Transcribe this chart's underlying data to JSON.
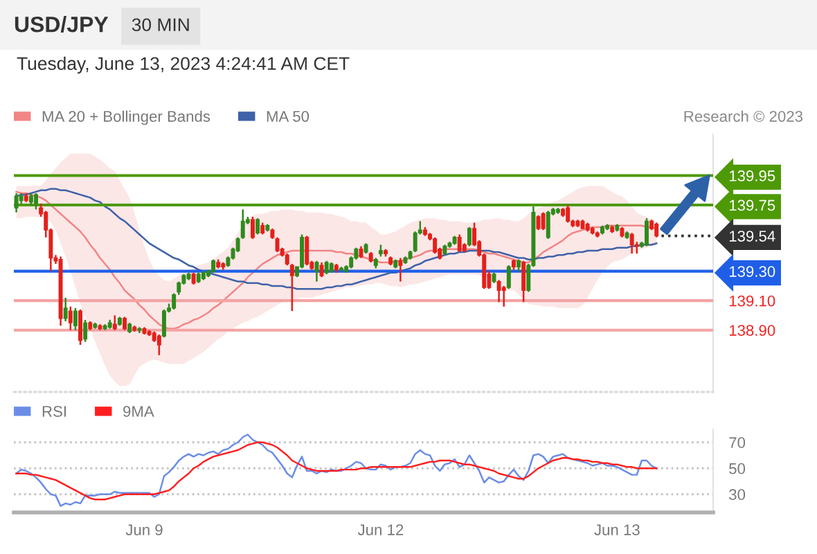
{
  "chart_data": [
    {
      "type": "candlestick",
      "title": "USD/JPY",
      "subtitle": "30 MIN",
      "annotations": [
        "Tuesday, June 13, 2023 4:24:41 AM CET",
        "Research © 2023"
      ],
      "categories": [
        null,
        null,
        null,
        null,
        null,
        null,
        null,
        null,
        null,
        null,
        null,
        null,
        null,
        null,
        null,
        null,
        null,
        null,
        null,
        null,
        null,
        null,
        null,
        null,
        null,
        null,
        null,
        null,
        null,
        null,
        null,
        null,
        null,
        null,
        null,
        null,
        null,
        null,
        null,
        null,
        null,
        null,
        null,
        null,
        null,
        null,
        null,
        null,
        null,
        null,
        null,
        null,
        null,
        null,
        null,
        null,
        null,
        null,
        null,
        null,
        null,
        null,
        null,
        null,
        null,
        null,
        null,
        null,
        null,
        null,
        null,
        null,
        null,
        null,
        null,
        null,
        null,
        null,
        null,
        null,
        null,
        null,
        null,
        null,
        null,
        null,
        null,
        null,
        null,
        null,
        null,
        null,
        null,
        null,
        null,
        null,
        null,
        null,
        null,
        null,
        null,
        null,
        null,
        null,
        null,
        null,
        null,
        null,
        null,
        null,
        null,
        null,
        null,
        null,
        null,
        null,
        null,
        null,
        null,
        null,
        null,
        null,
        null,
        null,
        null,
        null,
        null,
        null,
        null,
        null,
        null,
        null,
        null,
        null,
        null,
        null,
        null,
        null,
        null,
        null,
        null,
        null
      ],
      "ohlc": [
        [
          139.73,
          139.83,
          139.7,
          139.81
        ],
        [
          139.78,
          139.83,
          139.76,
          139.81
        ],
        [
          139.81,
          139.83,
          139.77,
          139.78
        ],
        [
          139.77,
          139.83,
          139.75,
          139.81
        ],
        [
          139.76,
          139.83,
          139.72,
          139.82
        ],
        [
          139.73,
          139.76,
          139.67,
          139.69
        ],
        [
          139.7,
          139.71,
          139.53,
          139.58
        ],
        [
          139.58,
          139.59,
          139.3,
          139.39
        ],
        [
          139.39,
          139.41,
          139.35,
          139.37
        ],
        [
          139.38,
          139.4,
          138.93,
          138.98
        ],
        [
          138.98,
          139.12,
          138.96,
          139.05
        ],
        [
          139.03,
          139.06,
          138.9,
          138.95
        ],
        [
          138.93,
          139.05,
          138.9,
          139.03
        ],
        [
          139.03,
          139.04,
          138.8,
          138.83
        ],
        [
          138.84,
          138.97,
          138.82,
          138.95
        ],
        [
          138.95,
          138.96,
          138.9,
          138.91
        ],
        [
          138.92,
          138.95,
          138.91,
          138.94
        ],
        [
          138.93,
          138.94,
          138.9,
          138.91
        ],
        [
          138.91,
          138.94,
          138.9,
          138.93
        ],
        [
          138.92,
          138.97,
          138.91,
          138.95
        ],
        [
          138.94,
          139.0,
          138.9,
          138.91
        ],
        [
          138.94,
          138.99,
          138.93,
          138.98
        ],
        [
          138.98,
          138.99,
          138.9,
          138.91
        ],
        [
          138.89,
          138.95,
          138.88,
          138.94
        ],
        [
          138.92,
          138.93,
          138.89,
          138.9
        ],
        [
          138.9,
          138.92,
          138.88,
          138.91
        ],
        [
          138.91,
          138.92,
          138.87,
          138.88
        ],
        [
          138.89,
          138.9,
          138.86,
          138.87
        ],
        [
          138.88,
          138.89,
          138.82,
          138.83
        ],
        [
          138.86,
          138.87,
          138.73,
          138.8
        ],
        [
          138.86,
          139.04,
          138.85,
          139.03
        ],
        [
          139.03,
          139.08,
          139.02,
          139.05
        ],
        [
          139.05,
          139.15,
          139.04,
          139.14
        ],
        [
          139.16,
          139.23,
          139.14,
          139.22
        ],
        [
          139.22,
          139.28,
          139.21,
          139.27
        ],
        [
          139.25,
          139.29,
          139.24,
          139.28
        ],
        [
          139.28,
          139.29,
          139.21,
          139.22
        ],
        [
          139.23,
          139.29,
          139.22,
          139.28
        ],
        [
          139.25,
          139.3,
          139.24,
          139.29
        ],
        [
          139.27,
          139.31,
          139.26,
          139.3
        ],
        [
          139.3,
          139.38,
          139.29,
          139.37
        ],
        [
          139.36,
          139.38,
          139.32,
          139.33
        ],
        [
          139.35,
          139.36,
          139.31,
          139.33
        ],
        [
          139.34,
          139.4,
          139.33,
          139.39
        ],
        [
          139.39,
          139.46,
          139.38,
          139.45
        ],
        [
          139.44,
          139.53,
          139.43,
          139.52
        ],
        [
          139.53,
          139.72,
          139.52,
          139.64
        ],
        [
          139.63,
          139.67,
          139.62,
          139.65
        ],
        [
          139.65,
          139.67,
          139.52,
          139.53
        ],
        [
          139.56,
          139.66,
          139.55,
          139.65
        ],
        [
          139.61,
          139.63,
          139.55,
          139.56
        ],
        [
          139.58,
          139.62,
          139.57,
          139.61
        ],
        [
          139.58,
          139.59,
          139.52,
          139.53
        ],
        [
          139.52,
          139.53,
          139.43,
          139.44
        ],
        [
          139.45,
          139.46,
          139.4,
          139.41
        ],
        [
          139.41,
          139.42,
          139.34,
          139.35
        ],
        [
          139.34,
          139.35,
          139.03,
          139.27
        ],
        [
          139.27,
          139.33,
          139.26,
          139.33
        ],
        [
          139.33,
          139.55,
          139.32,
          139.53
        ],
        [
          139.53,
          139.54,
          139.34,
          139.35
        ],
        [
          139.36,
          139.37,
          139.31,
          139.32
        ],
        [
          139.3,
          139.37,
          139.23,
          139.36
        ],
        [
          139.34,
          139.36,
          139.26,
          139.27
        ],
        [
          139.29,
          139.37,
          139.28,
          139.36
        ],
        [
          139.3,
          139.36,
          139.29,
          139.35
        ],
        [
          139.34,
          139.35,
          139.29,
          139.31
        ],
        [
          139.31,
          139.33,
          139.3,
          139.32
        ],
        [
          139.3,
          139.34,
          139.29,
          139.33
        ],
        [
          139.33,
          139.4,
          139.32,
          139.39
        ],
        [
          139.39,
          139.46,
          139.38,
          139.45
        ],
        [
          139.45,
          139.47,
          139.39,
          139.4
        ],
        [
          139.43,
          139.49,
          139.42,
          139.48
        ],
        [
          139.42,
          139.43,
          139.36,
          139.37
        ],
        [
          139.34,
          139.39,
          139.32,
          139.38
        ],
        [
          139.42,
          139.48,
          139.4,
          139.44
        ],
        [
          139.44,
          139.45,
          139.4,
          139.42
        ],
        [
          139.39,
          139.4,
          139.34,
          139.35
        ],
        [
          139.33,
          139.38,
          139.32,
          139.37
        ],
        [
          139.37,
          139.39,
          139.23,
          139.34
        ],
        [
          139.36,
          139.4,
          139.35,
          139.39
        ],
        [
          139.39,
          139.44,
          139.38,
          139.43
        ],
        [
          139.44,
          139.57,
          139.43,
          139.56
        ],
        [
          139.56,
          139.64,
          139.55,
          139.58
        ],
        [
          139.58,
          139.6,
          139.54,
          139.55
        ],
        [
          139.55,
          139.56,
          139.51,
          139.52
        ],
        [
          139.52,
          139.53,
          139.42,
          139.43
        ],
        [
          139.45,
          139.46,
          139.38,
          139.39
        ],
        [
          139.42,
          139.48,
          139.41,
          139.47
        ],
        [
          139.47,
          139.5,
          139.46,
          139.49
        ],
        [
          139.49,
          139.54,
          139.48,
          139.53
        ],
        [
          139.53,
          139.55,
          139.43,
          139.44
        ],
        [
          139.48,
          139.49,
          139.43,
          139.44
        ],
        [
          139.48,
          139.6,
          139.47,
          139.59
        ],
        [
          139.59,
          139.63,
          139.47,
          139.48
        ],
        [
          139.5,
          139.51,
          139.4,
          139.41
        ],
        [
          139.41,
          139.42,
          139.18,
          139.19
        ],
        [
          139.28,
          139.3,
          139.18,
          139.19
        ],
        [
          139.23,
          139.29,
          139.22,
          139.28
        ],
        [
          139.23,
          139.24,
          139.09,
          139.17
        ],
        [
          139.19,
          139.2,
          139.06,
          139.17
        ],
        [
          139.19,
          139.34,
          139.18,
          139.33
        ],
        [
          139.37,
          139.38,
          139.31,
          139.33
        ],
        [
          139.33,
          139.38,
          139.3,
          139.37
        ],
        [
          139.36,
          139.37,
          139.09,
          139.17
        ],
        [
          139.17,
          139.35,
          139.16,
          139.34
        ],
        [
          139.34,
          139.74,
          139.33,
          139.7
        ],
        [
          139.67,
          139.68,
          139.58,
          139.59
        ],
        [
          139.69,
          139.7,
          139.58,
          139.59
        ],
        [
          139.53,
          139.71,
          139.52,
          139.7
        ],
        [
          139.69,
          139.73,
          139.68,
          139.72
        ],
        [
          139.7,
          139.73,
          139.69,
          139.72
        ],
        [
          139.72,
          139.73,
          139.67,
          139.68
        ],
        [
          139.73,
          139.75,
          139.63,
          139.64
        ],
        [
          139.64,
          139.65,
          139.6,
          139.61
        ],
        [
          139.64,
          139.65,
          139.6,
          139.61
        ],
        [
          139.64,
          139.65,
          139.59,
          139.59
        ],
        [
          139.62,
          139.63,
          139.57,
          139.58
        ],
        [
          139.59,
          139.6,
          139.55,
          139.56
        ],
        [
          139.56,
          139.57,
          139.53,
          139.54
        ],
        [
          139.56,
          139.61,
          139.55,
          139.6
        ],
        [
          139.59,
          139.62,
          139.58,
          139.61
        ],
        [
          139.6,
          139.61,
          139.56,
          139.57
        ],
        [
          139.58,
          139.62,
          139.57,
          139.61
        ],
        [
          139.59,
          139.6,
          139.53,
          139.54
        ],
        [
          139.53,
          139.57,
          139.52,
          139.56
        ],
        [
          139.55,
          139.56,
          139.42,
          139.48
        ],
        [
          139.48,
          139.5,
          139.42,
          139.47
        ],
        [
          139.47,
          139.5,
          139.46,
          139.49
        ],
        [
          139.48,
          139.66,
          139.47,
          139.64
        ],
        [
          139.64,
          139.65,
          139.58,
          139.59
        ],
        [
          139.62,
          139.63,
          139.53,
          139.54
        ],
        null,
        null,
        null,
        null,
        null,
        null,
        null,
        null,
        null,
        null,
        null
      ],
      "colors": [
        "#2f8a1c",
        "#2f8a1c",
        "#e3201b",
        "#2f8a1c",
        "#2f8a1c",
        "#e3201b",
        "#e3201b",
        "#e3201b",
        "#e3201b",
        "#e3201b",
        "#2f8a1c",
        "#e3201b",
        "#2f8a1c",
        "#e3201b",
        "#2f8a1c",
        "#e3201b",
        "#2f8a1c",
        "#e3201b",
        "#2f8a1c",
        "#2f8a1c",
        "#e3201b",
        "#2f8a1c",
        "#e3201b",
        "#2f8a1c",
        "#e3201b",
        "#2f8a1c",
        "#e3201b",
        "#e3201b",
        "#e3201b",
        "#e3201b",
        "#2f8a1c",
        "#2f8a1c",
        "#2f8a1c",
        "#2f8a1c",
        "#2f8a1c",
        "#2f8a1c",
        "#e3201b",
        "#2f8a1c",
        "#2f8a1c",
        "#2f8a1c",
        "#2f8a1c",
        "#e3201b",
        "#e3201b",
        "#2f8a1c",
        "#2f8a1c",
        "#2f8a1c",
        "#2f8a1c",
        "#2f8a1c",
        "#e3201b",
        "#2f8a1c",
        "#e3201b",
        "#2f8a1c",
        "#e3201b",
        "#e3201b",
        "#e3201b",
        "#e3201b",
        "#e3201b",
        "#2f8a1c",
        "#2f8a1c",
        "#e3201b",
        "#e3201b",
        "#2f8a1c",
        "#e3201b",
        "#2f8a1c",
        "#2f8a1c",
        "#e3201b",
        "#2f8a1c",
        "#2f8a1c",
        "#2f8a1c",
        "#2f8a1c",
        "#e3201b",
        "#2f8a1c",
        "#e3201b",
        "#2f8a1c",
        "#2f8a1c",
        "#e3201b",
        "#e3201b",
        "#2f8a1c",
        "#e3201b",
        "#2f8a1c",
        "#2f8a1c",
        "#2f8a1c",
        "#2f8a1c",
        "#e3201b",
        "#e3201b",
        "#e3201b",
        "#e3201b",
        "#2f8a1c",
        "#2f8a1c",
        "#2f8a1c",
        "#e3201b",
        "#e3201b",
        "#2f8a1c",
        "#e3201b",
        "#e3201b",
        "#e3201b",
        "#e3201b",
        "#2f8a1c",
        "#e3201b",
        "#e3201b",
        "#2f8a1c",
        "#e3201b",
        "#2f8a1c",
        "#e3201b",
        "#2f8a1c",
        "#2f8a1c",
        "#e3201b",
        "#e3201b",
        "#2f8a1c",
        "#2f8a1c",
        "#2f8a1c",
        "#e3201b",
        "#e3201b",
        "#e3201b",
        "#e3201b",
        "#e3201b",
        "#e3201b",
        "#e3201b",
        "#e3201b",
        "#2f8a1c",
        "#2f8a1c",
        "#e3201b",
        "#2f8a1c",
        "#e3201b",
        "#2f8a1c",
        "#e3201b",
        "#e3201b",
        "#2f8a1c",
        "#2f8a1c",
        "#e3201b",
        "#e3201b",
        null,
        null,
        null,
        null,
        null,
        null,
        null,
        null,
        null,
        null,
        null
      ],
      "series": [
        {
          "type": "line",
          "name": "MA 20 + Bollinger Bands",
          "color": "#f28585",
          "values": [
            139.84,
            139.83,
            139.83,
            139.82,
            139.81,
            139.8,
            139.78,
            139.75,
            139.72,
            139.69,
            139.66,
            139.63,
            139.6,
            139.57,
            139.53,
            139.48,
            139.44,
            139.39,
            139.35,
            139.31,
            139.26,
            139.22,
            139.17,
            139.14,
            139.11,
            139.07,
            139.04,
            139.0,
            138.97,
            138.94,
            138.92,
            138.91,
            138.91,
            138.92,
            138.94,
            138.95,
            138.97,
            138.98,
            139.0,
            139.02,
            139.05,
            139.07,
            139.1,
            139.13,
            139.16,
            139.19,
            139.22,
            139.26,
            139.29,
            139.32,
            139.35,
            139.37,
            139.39,
            139.41,
            139.42,
            139.43,
            139.44,
            139.44,
            139.44,
            139.44,
            139.44,
            139.44,
            139.44,
            139.44,
            139.44,
            139.43,
            139.43,
            139.42,
            139.42,
            139.41,
            139.4,
            139.39,
            139.38,
            139.37,
            139.36,
            139.36,
            139.36,
            139.37,
            139.37,
            139.38,
            139.39,
            139.4,
            139.41,
            139.43,
            139.44,
            139.44,
            139.44,
            139.45,
            139.45,
            139.45,
            139.45,
            139.45,
            139.45,
            139.45,
            139.44,
            139.43,
            139.42,
            139.42,
            139.41,
            139.4,
            139.39,
            139.38,
            139.37,
            139.36,
            139.36,
            139.38,
            139.4,
            139.43,
            139.45,
            139.47,
            139.49,
            139.51,
            139.54,
            139.56,
            139.57,
            139.58,
            139.59,
            139.6,
            139.6,
            139.6,
            139.61,
            139.61,
            139.61,
            139.61,
            139.61,
            139.61,
            139.61,
            139.61,
            139.6,
            139.6,
            139.59,
            null,
            null,
            null,
            null,
            null,
            null,
            null,
            null,
            null,
            null,
            null
          ],
          "lower": [
            139.66,
            139.66,
            139.67,
            139.67,
            139.67,
            139.67,
            139.67,
            139.63,
            139.58,
            139.49,
            139.4,
            139.3,
            139.19,
            139.08,
            138.99,
            138.91,
            138.82,
            138.74,
            138.66,
            138.59,
            138.55,
            138.52,
            138.52,
            138.53,
            138.59,
            138.65,
            138.67,
            138.69,
            138.7,
            138.69,
            138.68,
            138.67,
            138.67,
            138.67,
            138.67,
            138.69,
            138.71,
            138.73,
            138.75,
            138.78,
            138.81,
            138.84,
            138.86,
            138.89,
            138.91,
            138.93,
            138.95,
            138.96,
            138.98,
            138.99,
            139.01,
            139.03,
            139.05,
            139.07,
            139.09,
            139.11,
            139.11,
            139.11,
            139.12,
            139.12,
            139.12,
            139.13,
            139.14,
            139.15,
            139.16,
            139.17,
            139.18,
            139.19,
            139.19,
            139.2,
            139.2,
            139.21,
            139.21,
            139.22,
            139.22,
            139.21,
            139.2,
            139.2,
            139.19,
            139.2,
            139.21,
            139.21,
            139.22,
            139.23,
            139.24,
            139.25,
            139.26,
            139.27,
            139.28,
            139.28,
            139.28,
            139.28,
            139.28,
            139.28,
            139.27,
            139.26,
            139.25,
            139.23,
            139.21,
            139.19,
            139.17,
            139.17,
            139.14,
            139.11,
            139.08,
            139.07,
            139.07,
            139.06,
            139.06,
            139.06,
            139.05,
            139.05,
            139.05,
            139.05,
            139.05,
            139.07,
            139.12,
            139.18,
            139.24,
            139.29,
            139.33,
            139.36,
            139.37,
            139.38,
            139.4,
            139.42,
            139.44,
            139.45,
            139.46,
            139.47,
            139.48,
            null,
            null,
            null,
            null,
            null,
            null,
            null,
            null,
            null,
            null,
            null
          ],
          "upper": [
            139.88,
            139.88,
            139.88,
            139.88,
            139.88,
            139.88,
            139.92,
            139.96,
            140.0,
            140.04,
            140.07,
            140.1,
            140.1,
            140.1,
            140.1,
            140.1,
            140.08,
            140.06,
            140.03,
            140.0,
            139.98,
            139.92,
            139.86,
            139.8,
            139.7,
            139.58,
            139.47,
            139.38,
            139.31,
            139.27,
            139.24,
            139.23,
            139.25,
            139.27,
            139.3,
            139.31,
            139.32,
            139.34,
            139.35,
            139.36,
            139.38,
            139.41,
            139.43,
            139.46,
            139.51,
            139.56,
            139.62,
            139.66,
            139.68,
            139.69,
            139.69,
            139.7,
            139.71,
            139.71,
            139.72,
            139.72,
            139.72,
            139.71,
            139.71,
            139.7,
            139.7,
            139.7,
            139.7,
            139.69,
            139.69,
            139.68,
            139.67,
            139.66,
            139.64,
            139.64,
            139.63,
            139.63,
            139.6,
            139.58,
            139.55,
            139.55,
            139.56,
            139.57,
            139.59,
            139.61,
            139.63,
            139.64,
            139.65,
            139.66,
            139.66,
            139.66,
            139.65,
            139.65,
            139.64,
            139.64,
            139.64,
            139.63,
            139.63,
            139.63,
            139.64,
            139.65,
            139.65,
            139.66,
            139.66,
            139.65,
            139.65,
            139.64,
            139.64,
            139.66,
            139.69,
            139.71,
            139.73,
            139.74,
            139.76,
            139.77,
            139.78,
            139.8,
            139.82,
            139.84,
            139.86,
            139.87,
            139.88,
            139.88,
            139.88,
            139.88,
            139.86,
            139.84,
            139.82,
            139.81,
            139.78,
            139.74,
            139.7,
            139.68,
            139.67,
            139.65,
            139.64,
            null,
            null,
            null,
            null,
            null,
            null,
            null,
            null,
            null,
            null,
            null
          ]
        },
        {
          "type": "line",
          "name": "MA 50",
          "color": "#3f62a8",
          "values": [
            139.81,
            139.82,
            139.82,
            139.83,
            139.84,
            139.85,
            139.85,
            139.86,
            139.86,
            139.85,
            139.85,
            139.84,
            139.83,
            139.82,
            139.81,
            139.8,
            139.78,
            139.77,
            139.74,
            139.72,
            139.69,
            139.66,
            139.64,
            139.61,
            139.58,
            139.55,
            139.52,
            139.49,
            139.47,
            139.45,
            139.43,
            139.41,
            139.39,
            139.38,
            139.36,
            139.34,
            139.33,
            139.31,
            139.3,
            139.29,
            139.28,
            139.27,
            139.26,
            139.25,
            139.24,
            139.23,
            139.23,
            139.22,
            139.22,
            139.22,
            139.21,
            139.21,
            139.2,
            139.2,
            139.2,
            139.19,
            139.19,
            139.18,
            139.18,
            139.18,
            139.18,
            139.18,
            139.18,
            139.19,
            139.19,
            139.2,
            139.2,
            139.21,
            139.21,
            139.22,
            139.23,
            139.24,
            139.25,
            139.26,
            139.27,
            139.28,
            139.29,
            139.29,
            139.3,
            139.31,
            139.32,
            139.34,
            139.35,
            139.37,
            139.38,
            139.39,
            139.4,
            139.41,
            139.42,
            139.42,
            139.43,
            139.43,
            139.44,
            139.44,
            139.44,
            139.44,
            139.44,
            139.43,
            139.43,
            139.42,
            139.41,
            139.4,
            139.39,
            139.39,
            139.38,
            139.38,
            139.39,
            139.39,
            139.4,
            139.4,
            139.41,
            139.41,
            139.42,
            139.42,
            139.43,
            139.43,
            139.44,
            139.44,
            139.44,
            139.45,
            139.45,
            139.45,
            139.46,
            139.46,
            139.46,
            139.47,
            139.47,
            139.48,
            139.48,
            139.48,
            139.49,
            null,
            null,
            null,
            null,
            null,
            null,
            null,
            null,
            null,
            null,
            null
          ]
        },
        {
          "type": "line",
          "color": "#333333",
          "line_style": "dotted",
          "values": [
            null,
            null,
            null,
            null,
            null,
            null,
            null,
            null,
            null,
            null,
            null,
            null,
            null,
            null,
            null,
            null,
            null,
            null,
            null,
            null,
            null,
            null,
            null,
            null,
            null,
            null,
            null,
            null,
            null,
            null,
            null,
            null,
            null,
            null,
            null,
            null,
            null,
            null,
            null,
            null,
            null,
            null,
            null,
            null,
            null,
            null,
            null,
            null,
            null,
            null,
            null,
            null,
            null,
            null,
            null,
            null,
            null,
            null,
            null,
            null,
            null,
            null,
            null,
            null,
            null,
            null,
            null,
            null,
            null,
            null,
            null,
            null,
            null,
            null,
            null,
            null,
            null,
            null,
            null,
            null,
            null,
            null,
            null,
            null,
            null,
            null,
            null,
            null,
            null,
            null,
            null,
            null,
            null,
            null,
            null,
            null,
            null,
            null,
            null,
            null,
            null,
            null,
            null,
            null,
            null,
            null,
            null,
            null,
            null,
            null,
            null,
            null,
            null,
            null,
            null,
            null,
            null,
            null,
            null,
            null,
            null,
            null,
            null,
            null,
            null,
            null,
            null,
            null,
            null,
            null,
            null,
            139.54,
            139.54,
            139.54,
            139.54,
            139.54,
            139.54,
            139.54,
            139.54,
            139.54,
            139.54,
            139.54
          ]
        }
      ],
      "ylim": [
        138.48,
        140.23
      ],
      "yticks": [
        139.95,
        139.75,
        139.54,
        {
          "value": 139.3,
          "label": "139.30"
        },
        {
          "value": 139.1,
          "label": "139.10"
        },
        {
          "value": 138.9,
          "label": "138.90"
        }
      ],
      "ref_lines": [
        {
          "axis": "y",
          "value": 139.95,
          "color": "#4e9a06"
        },
        {
          "axis": "y",
          "value": 139.75,
          "color": "#4e9a06"
        },
        {
          "axis": "y",
          "value": 139.3,
          "color": "#1f5fe8"
        },
        {
          "axis": "y",
          "value": 139.1,
          "color": "#f4a3a3"
        },
        {
          "axis": "y",
          "value": 138.9,
          "color": "#f4a3a3"
        }
      ],
      "legend": "top left",
      "tick_labels": "y"
    },
    {
      "type": "line",
      "categories": [
        null,
        null,
        null,
        null,
        null,
        null,
        null,
        null,
        null,
        null,
        null,
        null,
        null,
        null,
        null,
        null,
        null,
        null,
        null,
        null,
        null,
        null,
        null,
        null,
        null,
        null,
        "Jun 9",
        null,
        null,
        null,
        null,
        null,
        null,
        null,
        null,
        null,
        null,
        null,
        null,
        null,
        null,
        null,
        null,
        null,
        null,
        null,
        null,
        null,
        null,
        null,
        null,
        null,
        null,
        null,
        null,
        null,
        null,
        null,
        null,
        null,
        null,
        null,
        null,
        null,
        null,
        null,
        null,
        null,
        null,
        null,
        null,
        null,
        null,
        null,
        "Jun 12",
        null,
        null,
        null,
        null,
        null,
        null,
        null,
        null,
        null,
        null,
        null,
        null,
        null,
        null,
        null,
        null,
        null,
        null,
        null,
        null,
        null,
        null,
        null,
        null,
        null,
        null,
        null,
        null,
        null,
        null,
        null,
        null,
        null,
        null,
        null,
        null,
        null,
        null,
        null,
        null,
        null,
        null,
        null,
        null,
        null,
        null,
        null,
        "Jun 13",
        null,
        null,
        null,
        null,
        null,
        null,
        null,
        null,
        null,
        null,
        null,
        null,
        null,
        null,
        null,
        null,
        null,
        null,
        null
      ],
      "series": [
        {
          "name": "RSI",
          "color": "#6b8de6",
          "values": [
            46,
            49,
            48,
            46,
            43,
            39,
            34,
            30,
            29,
            21,
            23,
            22,
            24,
            23,
            29,
            29,
            29,
            30,
            30,
            30,
            32,
            31,
            31,
            31,
            31,
            31,
            31,
            31,
            28,
            30,
            44,
            47,
            51,
            56,
            59,
            61,
            59,
            61,
            60,
            62,
            63,
            61,
            64,
            65,
            68,
            70,
            74,
            76,
            72,
            70,
            68,
            64,
            62,
            57,
            52,
            46,
            43,
            52,
            59,
            48,
            48,
            46,
            48,
            47,
            49,
            48,
            48,
            50,
            52,
            55,
            54,
            50,
            49,
            49,
            53,
            52,
            49,
            51,
            51,
            52,
            54,
            61,
            64,
            61,
            60,
            52,
            48,
            53,
            54,
            57,
            51,
            53,
            60,
            54,
            48,
            39,
            43,
            41,
            39,
            40,
            45,
            49,
            44,
            41,
            48,
            60,
            61,
            59,
            54,
            59,
            60,
            61,
            58,
            57,
            56,
            55,
            54,
            52,
            53,
            54,
            52,
            52,
            51,
            49,
            47,
            45,
            45,
            56,
            56,
            52,
            50,
            null,
            null,
            null,
            null,
            null,
            null,
            null,
            null,
            null,
            null,
            null
          ]
        },
        {
          "name": "9MA",
          "color": "#ff1f1f",
          "values": [
            46,
            46,
            46,
            45,
            45,
            44,
            43,
            42,
            41,
            39,
            37,
            35,
            33,
            31,
            29,
            27,
            26,
            26,
            26,
            27,
            28,
            29,
            30,
            30,
            30,
            30,
            30,
            30,
            30,
            31,
            32,
            33,
            36,
            40,
            43,
            46,
            50,
            52,
            55,
            57,
            59,
            60,
            61,
            62,
            63,
            64,
            66,
            68,
            69,
            70,
            70,
            69,
            68,
            66,
            63,
            60,
            56,
            54,
            52,
            50,
            49,
            48,
            48,
            48,
            48,
            48,
            49,
            49,
            49,
            49,
            50,
            50,
            51,
            51,
            51,
            51,
            51,
            51,
            51,
            51,
            51,
            52,
            53,
            54,
            55,
            55,
            56,
            56,
            56,
            55,
            54,
            53,
            53,
            52,
            51,
            50,
            49,
            48,
            46,
            45,
            44,
            43,
            42,
            42,
            44,
            47,
            50,
            52,
            54,
            56,
            57,
            58,
            58,
            57,
            57,
            56,
            56,
            55,
            55,
            54,
            54,
            53,
            53,
            52,
            51,
            51,
            50,
            50,
            50,
            50,
            50,
            null,
            null,
            null,
            null,
            null,
            null,
            null,
            null,
            null,
            null,
            null
          ]
        }
      ],
      "ylim": [
        16,
        80
      ],
      "yticks": [
        30,
        50,
        70
      ],
      "grid": "y",
      "legend": "top left"
    }
  ]
}
